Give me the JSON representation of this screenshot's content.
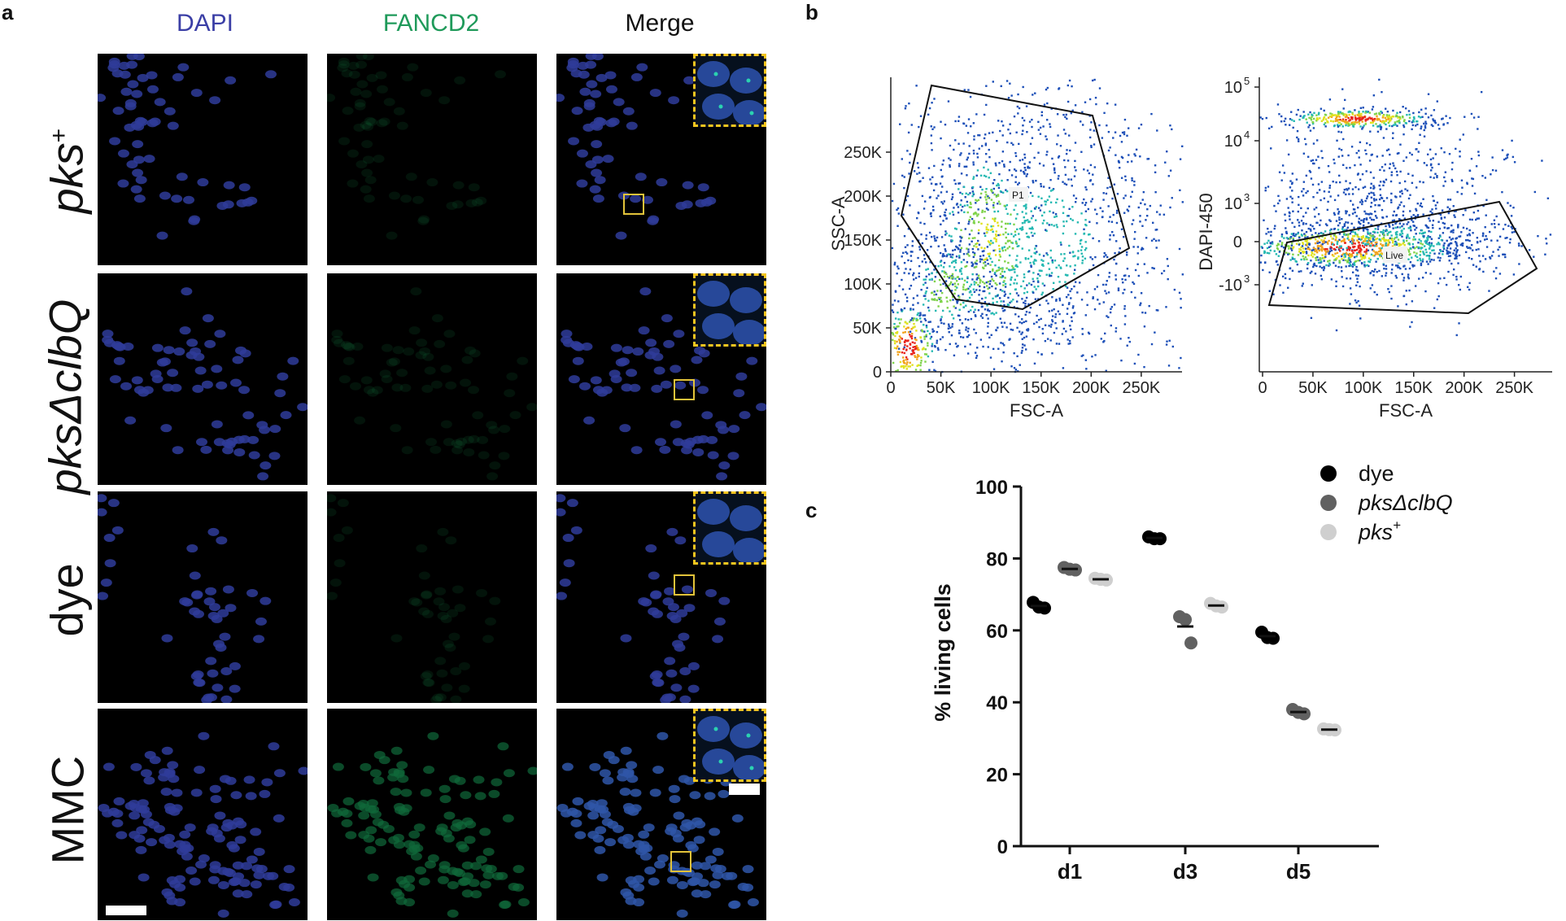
{
  "panel_letters": {
    "a": "a",
    "b": "b",
    "c": "c"
  },
  "panel_a": {
    "column_headers": [
      "DAPI",
      "FANCD2",
      "Merge"
    ],
    "column_colors": [
      "#3b3fa6",
      "#1f9a5a",
      "#111111"
    ],
    "rows": [
      {
        "label_main": "pks",
        "label_sup": "+",
        "label_rest": ""
      },
      {
        "label_main": "pks",
        "label_sup": "",
        "label_rest": "ΔclbQ"
      },
      {
        "label_main": "dye",
        "label_sup": "",
        "label_rest": ""
      },
      {
        "label_main": "MMC",
        "label_sup": "",
        "label_rest": ""
      }
    ]
  },
  "panel_b": {
    "left": {
      "xlabel": "FSC-A",
      "ylabel": "SSC-A",
      "xticks": [
        "0",
        "50K",
        "100K",
        "150K",
        "200K",
        "250K"
      ],
      "yticks": [
        "0",
        "50K",
        "100K",
        "150K",
        "200K",
        "250K"
      ],
      "gate_label": "P1"
    },
    "right": {
      "xlabel": "FSC-A",
      "ylabel": "DAPI-450",
      "xticks": [
        "0",
        "50K",
        "100K",
        "150K",
        "200K",
        "250K"
      ],
      "yticks": [
        "10",
        "10",
        "10",
        "0",
        "-10"
      ],
      "ytick_exp": [
        "5",
        "4",
        "3",
        "",
        "3"
      ],
      "gate_label": "Live"
    }
  },
  "chart_data": {
    "type": "scatter",
    "categories": [
      "d1",
      "d3",
      "d5"
    ],
    "ylabel": "% living cells",
    "ylim": [
      0,
      100
    ],
    "yticks": [
      "0",
      "20",
      "40",
      "60",
      "80",
      "100"
    ],
    "legend_position": "top-right",
    "series": [
      {
        "name": "dye",
        "color": "#000000",
        "points": [
          [
            67.8,
            66.5,
            66.2
          ],
          [
            86.0,
            85.5,
            85.5
          ],
          [
            59.5,
            58.0,
            57.8
          ]
        ],
        "means": [
          66.8,
          85.7,
          58.4
        ]
      },
      {
        "name": "pksΔclbQ",
        "color": "#616161",
        "points": [
          [
            77.5,
            77.0,
            76.8
          ],
          [
            63.8,
            63.0,
            56.5
          ],
          [
            38.0,
            37.2,
            36.8
          ]
        ],
        "means": [
          77.1,
          61.1,
          37.3
        ]
      },
      {
        "name": "pks+",
        "color": "#cfcfcf",
        "points": [
          [
            74.5,
            74.2,
            74.0
          ],
          [
            67.5,
            66.8,
            66.5
          ],
          [
            32.6,
            32.4,
            32.3
          ]
        ],
        "means": [
          74.2,
          66.9,
          32.4
        ]
      }
    ],
    "legend_labels": {
      "dye": "dye",
      "pks_main": "pks",
      "pks_rest": "ΔclbQ",
      "pksplus_main": "pks",
      "pksplus_sup": "+"
    }
  }
}
